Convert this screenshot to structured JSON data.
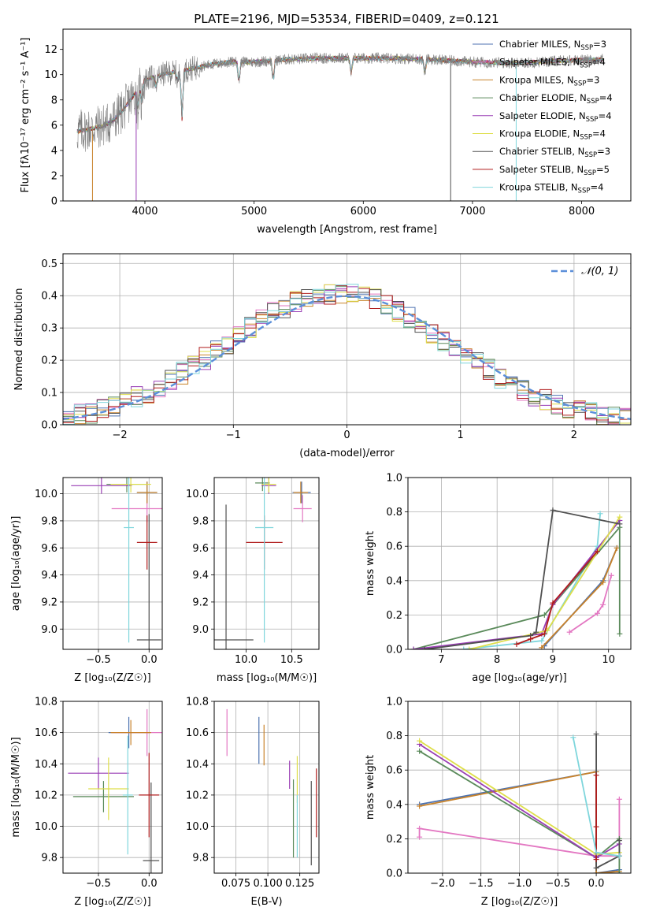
{
  "figure_title": "PLATE=2196, MJD=53534, FIBERID=0409, z=0.121",
  "colors": {
    "Chabrier MILES": "#4c72b0",
    "Salpeter MILES": "#e377c2",
    "Kroupa MILES": "#c8822a",
    "Chabrier ELODIE": "#5a8a5a",
    "Salpeter ELODIE": "#9a3fb5",
    "Kroupa ELODIE": "#dede4a",
    "Chabrier STELIB": "#505050",
    "Salpeter STELIB": "#b01c1c",
    "Kroupa STELIB": "#7fd6dc",
    "gaussian": "#5b8fd9",
    "grid": "#b0b0b0",
    "data_spectrum": "#808080"
  },
  "chart_data": [
    {
      "id": "spectrum",
      "type": "line",
      "title": "PLATE=2196, MJD=53534, FIBERID=0409, z=0.121",
      "xlabel": "wavelength [Angstrom, rest frame]",
      "ylabel": "Flux [fλ10⁻¹⁷ erg cm⁻² s⁻¹ A⁻¹]",
      "xlim": [
        3250,
        8450
      ],
      "ylim": [
        0,
        13.6
      ],
      "xticks": [
        4000,
        5000,
        6000,
        7000,
        8000
      ],
      "yticks": [
        0,
        2,
        4,
        6,
        8,
        10,
        12
      ],
      "grid": false,
      "legend_position": "right",
      "series": [
        {
          "name": "Chabrier MILES, N_SSP=3",
          "label_main": "Chabrier MILES, N",
          "label_sub": "SSP",
          "label_tail": "=3"
        },
        {
          "name": "Salpeter MILES, N_SSP=4",
          "label_main": "Salpeter MILES, N",
          "label_sub": "SSP",
          "label_tail": "=4"
        },
        {
          "name": "Kroupa MILES, N_SSP=3",
          "label_main": "Kroupa MILES, N",
          "label_sub": "SSP",
          "label_tail": "=3"
        },
        {
          "name": "Chabrier ELODIE, N_SSP=4",
          "label_main": "Chabrier ELODIE, N",
          "label_sub": "SSP",
          "label_tail": "=4"
        },
        {
          "name": "Salpeter ELODIE, N_SSP=4",
          "label_main": "Salpeter ELODIE, N",
          "label_sub": "SSP",
          "label_tail": "=4"
        },
        {
          "name": "Kroupa ELODIE, N_SSP=4",
          "label_main": "Kroupa ELODIE, N",
          "label_sub": "SSP",
          "label_tail": "=4"
        },
        {
          "name": "Chabrier STELIB, N_SSP=3",
          "label_main": "Chabrier STELIB, N",
          "label_sub": "SSP",
          "label_tail": "=3"
        },
        {
          "name": "Salpeter STELIB, N_SSP=5",
          "label_main": "Salpeter STELIB, N",
          "label_sub": "SSP",
          "label_tail": "=5"
        },
        {
          "name": "Kroupa STELIB, N_SSP=4",
          "label_main": "Kroupa STELIB, N",
          "label_sub": "SSP",
          "label_tail": "=4"
        }
      ],
      "continuum_points": [
        [
          3380,
          5.5
        ],
        [
          3500,
          5.7
        ],
        [
          3600,
          5.9
        ],
        [
          3700,
          6.3
        ],
        [
          3800,
          7.2
        ],
        [
          3900,
          8.4
        ],
        [
          4000,
          9.6
        ],
        [
          4200,
          10.1
        ],
        [
          4400,
          10.4
        ],
        [
          4600,
          10.8
        ],
        [
          4800,
          11.0
        ],
        [
          5000,
          11.0
        ],
        [
          5300,
          11.2
        ],
        [
          5600,
          11.3
        ],
        [
          6000,
          11.3
        ],
        [
          6300,
          11.3
        ],
        [
          6600,
          11.2
        ],
        [
          7000,
          11.0
        ],
        [
          7400,
          10.9
        ],
        [
          7800,
          11.1
        ],
        [
          8200,
          11.2
        ]
      ],
      "absorption_features": [
        [
          3934,
          7.3
        ],
        [
          3968,
          7.8
        ],
        [
          4102,
          8.8
        ],
        [
          4300,
          9.4
        ],
        [
          4340,
          6.5
        ],
        [
          4861,
          9.2
        ],
        [
          5175,
          9.3
        ],
        [
          5890,
          10.0
        ],
        [
          6563,
          10.0
        ]
      ],
      "model_cutoffs": [
        [
          3520,
          0
        ],
        [
          3920,
          0
        ],
        [
          6800,
          0
        ],
        [
          7400,
          0
        ]
      ]
    },
    {
      "id": "residuals",
      "type": "line",
      "xlabel": "(data-model)/error",
      "ylabel": "Normed distribution",
      "xlim": [
        -2.5,
        2.5
      ],
      "ylim": [
        0,
        0.53
      ],
      "xticks": [
        -2,
        -1,
        0,
        1,
        2
      ],
      "yticks": [
        0.0,
        0.1,
        0.2,
        0.3,
        0.4,
        0.5
      ],
      "grid": true,
      "legend_position": "top-right",
      "reference_curve": {
        "name": "𝒩(0, 1)",
        "mean": 0,
        "sigma": 1,
        "style": "dashed"
      },
      "bin_width": 0.1
    },
    {
      "id": "age-vs-Z",
      "type": "scatter",
      "xlabel": "Z [log₁₀(Z/Z☉)]",
      "ylabel": "age  [log₁₀(age/yr)]",
      "xlim": [
        -0.85,
        0.13
      ],
      "ylim": [
        8.85,
        10.12
      ],
      "xticks": [
        -0.5,
        0.0
      ],
      "yticks": [
        9.0,
        9.2,
        9.4,
        9.6,
        9.8,
        10.0
      ],
      "grid": true,
      "points": [
        {
          "series": "Chabrier MILES",
          "x": -0.02,
          "y": 10.01,
          "xerr": 0.1,
          "yerr": 0.08
        },
        {
          "series": "Salpeter MILES",
          "x": -0.02,
          "y": 9.89,
          "xerr": 0.35,
          "yerr": 0.1
        },
        {
          "series": "Kroupa MILES",
          "x": -0.02,
          "y": 10.01,
          "xerr": 0.1,
          "yerr": 0.08
        },
        {
          "series": "Chabrier ELODIE",
          "x": -0.22,
          "y": 10.07,
          "xerr": 0.2,
          "yerr": 0.06
        },
        {
          "series": "Salpeter ELODIE",
          "x": -0.47,
          "y": 10.06,
          "xerr": 0.3,
          "yerr": 0.06
        },
        {
          "series": "Kroupa ELODIE",
          "x": -0.18,
          "y": 10.07,
          "xerr": 0.2,
          "yerr": 0.06
        },
        {
          "series": "Chabrier STELIB",
          "x": 0.0,
          "y": 8.92,
          "xerr": 0.12,
          "yerr": 0.93
        },
        {
          "series": "Salpeter STELIB",
          "x": -0.02,
          "y": 9.64,
          "xerr": 0.1,
          "yerr": 0.2
        },
        {
          "series": "Kroupa STELIB",
          "x": -0.2,
          "y": 9.75,
          "xerr": 0.05,
          "yerr": 0.85
        }
      ]
    },
    {
      "id": "age-vs-mass",
      "type": "scatter",
      "xlabel": "mass [log₁₀(M/M☉)]",
      "xlim": [
        9.65,
        10.8
      ],
      "ylim": [
        8.85,
        10.12
      ],
      "xticks": [
        10.0,
        10.5
      ],
      "yticks": [
        9.0,
        9.2,
        9.4,
        9.6,
        9.8,
        10.0
      ],
      "grid": true,
      "points": [
        {
          "series": "Chabrier MILES",
          "x": 10.61,
          "y": 10.01,
          "xerr": 0.1,
          "yerr": 0.08
        },
        {
          "series": "Salpeter MILES",
          "x": 10.62,
          "y": 9.89,
          "xerr": 0.1,
          "yerr": 0.1
        },
        {
          "series": "Kroupa MILES",
          "x": 10.6,
          "y": 10.01,
          "xerr": 0.08,
          "yerr": 0.08
        },
        {
          "series": "Chabrier ELODIE",
          "x": 10.18,
          "y": 10.08,
          "xerr": 0.08,
          "yerr": 0.06
        },
        {
          "series": "Salpeter ELODIE",
          "x": 10.25,
          "y": 10.06,
          "xerr": 0.08,
          "yerr": 0.06
        },
        {
          "series": "Kroupa ELODIE",
          "x": 10.25,
          "y": 10.07,
          "xerr": 0.08,
          "yerr": 0.06
        },
        {
          "series": "Chabrier STELIB",
          "x": 9.78,
          "y": 8.92,
          "xerr": 0.3,
          "yerr": 1.0
        },
        {
          "series": "Salpeter STELIB",
          "x": 10.2,
          "y": 9.64,
          "xerr": 0.2,
          "yerr": 0.2
        },
        {
          "series": "Kroupa STELIB",
          "x": 10.2,
          "y": 9.75,
          "xerr": 0.1,
          "yerr": 0.85
        }
      ]
    },
    {
      "id": "mass-weight-vs-age",
      "type": "line",
      "xlabel": "age  [log₁₀(age/yr)]",
      "ylabel": "mass weight",
      "xlim": [
        6.4,
        10.4
      ],
      "ylim": [
        0,
        1
      ],
      "xticks": [
        7,
        8,
        9,
        10
      ],
      "yticks": [
        0.0,
        0.2,
        0.4,
        0.6,
        0.8,
        1.0
      ],
      "grid": true,
      "series": [
        {
          "series": "Kroupa STELIB",
          "x": [
            7.4,
            8.8,
            9.8,
            9.85
          ],
          "y": [
            0.0,
            0.05,
            0.6,
            0.79
          ]
        },
        {
          "series": "Chabrier MILES",
          "x": [
            8.85,
            9.9,
            10.15
          ],
          "y": [
            0.02,
            0.4,
            0.59
          ]
        },
        {
          "series": "Salpeter MILES",
          "x": [
            9.3,
            9.8,
            9.9,
            10.05
          ],
          "y": [
            0.1,
            0.21,
            0.26,
            0.43
          ]
        },
        {
          "series": "Kroupa MILES",
          "x": [
            8.8,
            9.9,
            10.15
          ],
          "y": [
            0.01,
            0.39,
            0.59
          ]
        },
        {
          "series": "Chabrier ELODIE",
          "x": [
            6.5,
            8.85,
            10.2,
            10.2
          ],
          "y": [
            0.0,
            0.2,
            0.71,
            0.09
          ]
        },
        {
          "series": "Salpeter ELODIE",
          "x": [
            6.5,
            8.8,
            9.0,
            10.2
          ],
          "y": [
            0.0,
            0.09,
            0.26,
            0.75
          ]
        },
        {
          "series": "Kroupa ELODIE",
          "x": [
            7.5,
            8.9,
            10.2
          ],
          "y": [
            0.0,
            0.11,
            0.77
          ]
        },
        {
          "series": "Chabrier STELIB",
          "x": [
            6.7,
            8.6,
            8.7,
            9.0,
            10.2
          ],
          "y": [
            0.0,
            0.08,
            0.1,
            0.81,
            0.73
          ]
        },
        {
          "series": "Salpeter STELIB",
          "x": [
            8.35,
            8.6,
            8.85,
            9.0,
            9.8
          ],
          "y": [
            0.03,
            0.06,
            0.09,
            0.27,
            0.57
          ]
        }
      ]
    },
    {
      "id": "mass-vs-Z",
      "type": "scatter",
      "xlabel": "Z [log₁₀(Z/Z☉)]",
      "ylabel": "mass [log₁₀(M/M☉)]",
      "xlim": [
        -0.85,
        0.13
      ],
      "ylim": [
        9.7,
        10.8
      ],
      "xticks": [
        -0.5,
        0.0
      ],
      "yticks": [
        9.8,
        10.0,
        10.2,
        10.4,
        10.6,
        10.8
      ],
      "grid": true,
      "points": [
        {
          "series": "Chabrier MILES",
          "x": -0.2,
          "y": 10.6,
          "xerr": 0.2,
          "yerr": 0.1
        },
        {
          "series": "Salpeter MILES",
          "x": -0.02,
          "y": 10.6,
          "xerr": 0.35,
          "yerr": 0.15
        },
        {
          "series": "Kroupa MILES",
          "x": -0.18,
          "y": 10.6,
          "xerr": 0.2,
          "yerr": 0.08
        },
        {
          "series": "Chabrier ELODIE",
          "x": -0.45,
          "y": 10.19,
          "xerr": 0.3,
          "yerr": 0.1
        },
        {
          "series": "Salpeter ELODIE",
          "x": -0.5,
          "y": 10.34,
          "xerr": 0.3,
          "yerr": 0.1
        },
        {
          "series": "Kroupa ELODIE",
          "x": -0.4,
          "y": 10.24,
          "xerr": 0.2,
          "yerr": 0.2
        },
        {
          "series": "Chabrier STELIB",
          "x": 0.02,
          "y": 9.78,
          "xerr": 0.08,
          "yerr": 0.5
        },
        {
          "series": "Salpeter STELIB",
          "x": 0.0,
          "y": 10.2,
          "xerr": 0.1,
          "yerr": 0.27
        },
        {
          "series": "Kroupa STELIB",
          "x": -0.21,
          "y": 10.2,
          "xerr": 0.05,
          "yerr": 0.38
        }
      ]
    },
    {
      "id": "mass-vs-EBV",
      "type": "scatter",
      "xlabel": "E(B-V)",
      "xlim": [
        0.058,
        0.14
      ],
      "ylim": [
        9.7,
        10.8
      ],
      "xticks": [
        0.075,
        0.1,
        0.125
      ],
      "xtick_labels": [
        "0.075",
        "0.100",
        "0.125"
      ],
      "yticks": [
        9.8,
        10.0,
        10.2,
        10.4,
        10.6,
        10.8
      ],
      "grid": true,
      "points": [
        {
          "series": "Chabrier MILES",
          "x": 0.093,
          "y": 10.55,
          "yerr": 0.15
        },
        {
          "series": "Salpeter MILES",
          "x": 0.068,
          "y": 10.6,
          "yerr": 0.15
        },
        {
          "series": "Kroupa MILES",
          "x": 0.097,
          "y": 10.52,
          "yerr": 0.13
        },
        {
          "series": "Chabrier ELODIE",
          "x": 0.12,
          "y": 10.05,
          "yerr": 0.25
        },
        {
          "series": "Salpeter ELODIE",
          "x": 0.117,
          "y": 10.33,
          "yerr": 0.09
        },
        {
          "series": "Kroupa ELODIE",
          "x": 0.123,
          "y": 10.3,
          "yerr": 0.15
        },
        {
          "series": "Chabrier STELIB",
          "x": 0.134,
          "y": 10.02,
          "yerr": 0.27
        },
        {
          "series": "Salpeter STELIB",
          "x": 0.138,
          "y": 10.15,
          "yerr": 0.22
        },
        {
          "series": "Kroupa STELIB",
          "x": 0.123,
          "y": 10.0,
          "yerr": 0.2
        }
      ]
    },
    {
      "id": "mass-weight-vs-Z",
      "type": "line",
      "xlabel": "Z [log₁₀(Z/Z☉)]",
      "ylabel": "mass weight",
      "xlim": [
        -2.45,
        0.45
      ],
      "ylim": [
        0,
        1
      ],
      "xticks": [
        -2.0,
        -1.5,
        -1.0,
        -0.5,
        0.0
      ],
      "yticks": [
        0.0,
        0.2,
        0.4,
        0.6,
        0.8,
        1.0
      ],
      "grid": true,
      "series": [
        {
          "series": "Salpeter MILES",
          "x": [
            -2.3,
            -2.3,
            0.0,
            0.3,
            0.3
          ],
          "y": [
            0.21,
            0.26,
            0.1,
            0.1,
            0.43
          ]
        },
        {
          "series": "Chabrier MILES",
          "x": [
            -2.3,
            0.0,
            0.0,
            0.3
          ],
          "y": [
            0.4,
            0.59,
            0.0,
            0.02
          ]
        },
        {
          "series": "Kroupa MILES",
          "x": [
            -2.3,
            0.0,
            0.0,
            0.3
          ],
          "y": [
            0.39,
            0.59,
            0.0,
            0.01
          ]
        },
        {
          "series": "Chabrier ELODIE",
          "x": [
            -2.3,
            0.0,
            0.3,
            0.3
          ],
          "y": [
            0.71,
            0.09,
            0.2,
            0.0
          ]
        },
        {
          "series": "Salpeter ELODIE",
          "x": [
            -2.3,
            0.0,
            0.3
          ],
          "y": [
            0.75,
            0.09,
            0.17
          ]
        },
        {
          "series": "Kroupa ELODIE",
          "x": [
            -2.3,
            0.0,
            0.3
          ],
          "y": [
            0.77,
            0.11,
            0.12
          ]
        },
        {
          "series": "Chabrier STELIB",
          "x": [
            0.0,
            0.0,
            0.3,
            0.3
          ],
          "y": [
            0.81,
            0.03,
            0.1,
            0.19
          ]
        },
        {
          "series": "Salpeter STELIB",
          "x": [
            0.0,
            0.0,
            0.0
          ],
          "y": [
            0.57,
            0.27,
            0.08
          ]
        },
        {
          "series": "Kroupa STELIB",
          "x": [
            -0.3,
            0.0,
            0.3
          ],
          "y": [
            0.79,
            0.12,
            0.1
          ]
        }
      ]
    }
  ]
}
